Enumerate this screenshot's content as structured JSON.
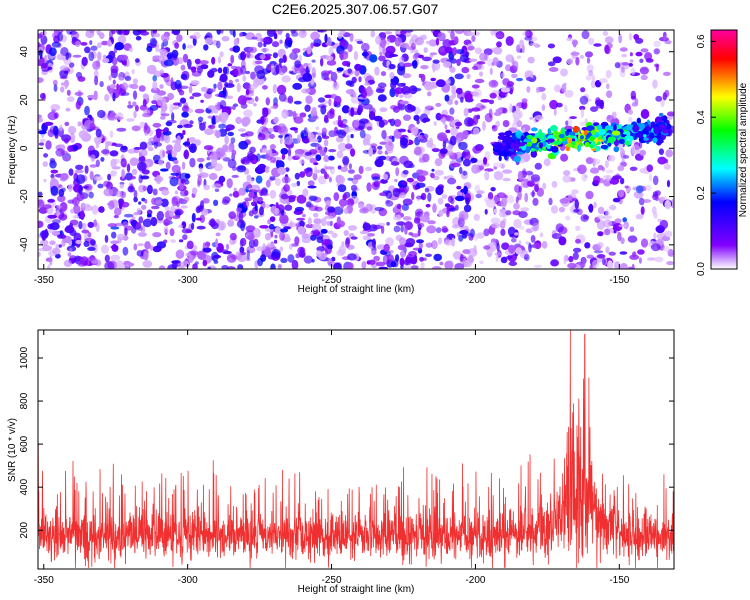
{
  "title": "C2E6.2025.307.06.57.G07",
  "chart_data": [
    {
      "type": "heatmap",
      "xlabel": "Height of straight line (km)",
      "ylabel": "Frequency (Hz)",
      "xlim": [
        -352,
        -131
      ],
      "ylim": [
        -50,
        49
      ],
      "x_ticks": [
        -350,
        -300,
        -250,
        -200,
        -150
      ],
      "y_ticks": [
        -40,
        -20,
        0,
        20,
        40
      ],
      "colorbar": {
        "label": "Normalized spectral amplitude",
        "range": [
          0.0,
          0.63
        ],
        "ticks": [
          0.0,
          0.2,
          0.4,
          0.6
        ],
        "colormap": [
          "#ffffff",
          "#8000ff",
          "#0000ff",
          "#00ffff",
          "#00ff00",
          "#ffff00",
          "#ff0000",
          "#ff00a0"
        ]
      },
      "background_level": 0.05,
      "signal": {
        "x_range": [
          -193,
          -133
        ],
        "freq_center_start": 1,
        "freq_center_end": 8,
        "peak_amplitude": 0.6,
        "peak_x": -165
      }
    },
    {
      "type": "line",
      "xlabel": "Height of straight line (km)",
      "ylabel": "SNR (10 * v/v)",
      "xlim": [
        -352,
        -131
      ],
      "ylim": [
        20,
        1130
      ],
      "x_ticks": [
        -350,
        -300,
        -250,
        -200,
        -150
      ],
      "y_ticks": [
        200,
        400,
        600,
        800,
        1000
      ],
      "color": "#f03030",
      "baseline_mean": 170,
      "typical_peak": 450,
      "max_value": 1130,
      "max_at_x": -167,
      "secondary_peak": {
        "x": -162,
        "value": 1110
      },
      "enhanced_region": [
        -175,
        -150
      ]
    }
  ]
}
